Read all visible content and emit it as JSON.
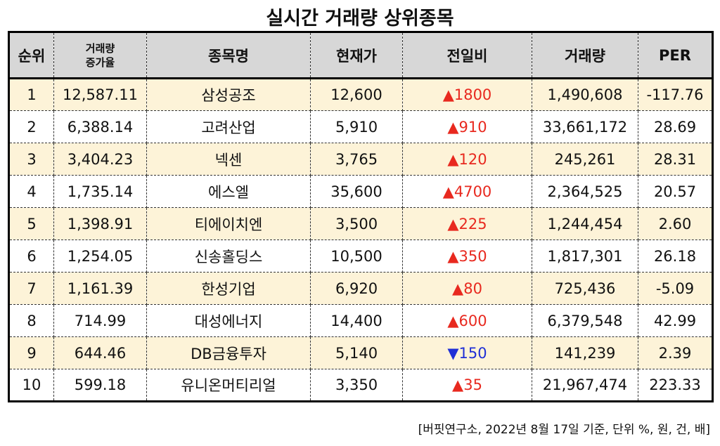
{
  "title": "실시간 거래량 상위종목",
  "headers": {
    "rank": "순위",
    "increase_line1": "거래량",
    "increase_line2": "증가율",
    "name": "종목명",
    "price": "현재가",
    "change": "전일비",
    "volume": "거래량",
    "per": "PER"
  },
  "colors": {
    "up": "#e8291f",
    "down": "#1f2fd6",
    "odd_row": "#fdf3d8",
    "header": "#d7d7d7"
  },
  "rows": [
    {
      "rank": "1",
      "increase": "12,587.11",
      "name": "삼성공조",
      "price": "12,600",
      "arrow": "▲",
      "direction": "up",
      "change": "1800",
      "volume": "1,490,608",
      "per": "-117.76"
    },
    {
      "rank": "2",
      "increase": "6,388.14",
      "name": "고려산업",
      "price": "5,910",
      "arrow": "▲",
      "direction": "up",
      "change": "910",
      "volume": "33,661,172",
      "per": "28.69"
    },
    {
      "rank": "3",
      "increase": "3,404.23",
      "name": "넥센",
      "price": "3,765",
      "arrow": "▲",
      "direction": "up",
      "change": "120",
      "volume": "245,261",
      "per": "28.31"
    },
    {
      "rank": "4",
      "increase": "1,735.14",
      "name": "에스엘",
      "price": "35,600",
      "arrow": "▲",
      "direction": "up",
      "change": "4700",
      "volume": "2,364,525",
      "per": "20.57"
    },
    {
      "rank": "5",
      "increase": "1,398.91",
      "name": "티에이치엔",
      "price": "3,500",
      "arrow": "▲",
      "direction": "up",
      "change": "225",
      "volume": "1,244,454",
      "per": "2.60"
    },
    {
      "rank": "6",
      "increase": "1,254.05",
      "name": "신송홀딩스",
      "price": "10,500",
      "arrow": "▲",
      "direction": "up",
      "change": "350",
      "volume": "1,817,301",
      "per": "26.18"
    },
    {
      "rank": "7",
      "increase": "1,161.39",
      "name": "한성기업",
      "price": "6,920",
      "arrow": "▲",
      "direction": "up",
      "change": "80",
      "volume": "725,436",
      "per": "-5.09"
    },
    {
      "rank": "8",
      "increase": "714.99",
      "name": "대성에너지",
      "price": "14,400",
      "arrow": "▲",
      "direction": "up",
      "change": "600",
      "volume": "6,379,548",
      "per": "42.99"
    },
    {
      "rank": "9",
      "increase": "644.46",
      "name": "DB금융투자",
      "price": "5,140",
      "arrow": "▼",
      "direction": "down",
      "change": "150",
      "volume": "141,239",
      "per": "2.39"
    },
    {
      "rank": "10",
      "increase": "599.18",
      "name": "유니온머티리얼",
      "price": "3,350",
      "arrow": "▲",
      "direction": "up",
      "change": "35",
      "volume": "21,967,474",
      "per": "223.33"
    }
  ],
  "footnote": "[버핏연구소, 2022년 8월 17일 기준, 단위 %, 원, 건, 배]"
}
